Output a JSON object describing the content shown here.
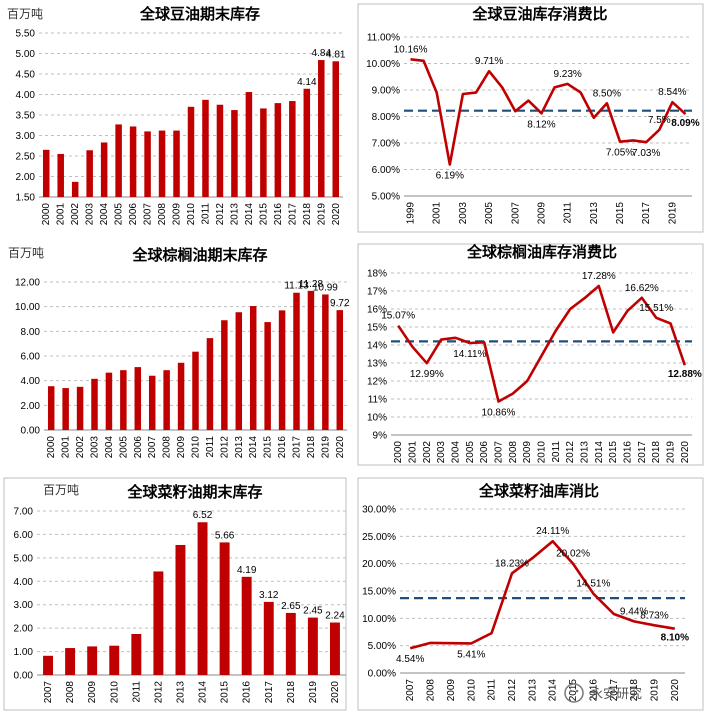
{
  "watermark": "永安研究",
  "chart_data": [
    {
      "id": "soy-stock",
      "type": "bar",
      "title": "全球豆油期末库存",
      "unit": "百万吨",
      "categories": [
        "2000",
        "2001",
        "2002",
        "2003",
        "2004",
        "2005",
        "2006",
        "2007",
        "2008",
        "2009",
        "2010",
        "2011",
        "2012",
        "2013",
        "2014",
        "2015",
        "2016",
        "2017",
        "2018",
        "2019",
        "2020"
      ],
      "values": [
        2.65,
        2.55,
        1.87,
        2.64,
        2.83,
        3.27,
        3.22,
        3.1,
        3.12,
        3.12,
        3.7,
        3.87,
        3.75,
        3.62,
        4.06,
        3.66,
        3.79,
        3.84,
        4.14,
        4.84,
        4.81
      ],
      "yticks": [
        "1.50",
        "2.00",
        "2.50",
        "3.00",
        "3.50",
        "4.00",
        "4.50",
        "5.00",
        "5.50"
      ],
      "ylim": [
        1.5,
        5.5
      ],
      "data_labels": [
        {
          "index": 18,
          "text": "4.14"
        },
        {
          "index": 19,
          "text": "4.84"
        },
        {
          "index": 20,
          "text": "4.81"
        }
      ],
      "bar_color": "#C00000"
    },
    {
      "id": "soy-ratio",
      "type": "line",
      "title": "全球豆油库存消费比",
      "x": [
        1999,
        2000,
        2001,
        2002,
        2003,
        2004,
        2005,
        2006,
        2007,
        2008,
        2009,
        2010,
        2011,
        2012,
        2013,
        2014,
        2015,
        2016,
        2017,
        2018,
        2019,
        2020
      ],
      "xticks": [
        "1999",
        "2001",
        "2003",
        "2005",
        "2007",
        "2009",
        "2011",
        "2013",
        "2015",
        "2017",
        "2019"
      ],
      "values": [
        10.16,
        10.1,
        8.9,
        6.19,
        8.85,
        8.9,
        9.71,
        9.1,
        8.2,
        8.6,
        8.12,
        9.1,
        9.23,
        8.9,
        7.95,
        8.5,
        7.05,
        7.1,
        7.03,
        7.5,
        8.54,
        8.09
      ],
      "yticks": [
        "5.00%",
        "6.00%",
        "7.00%",
        "8.00%",
        "9.00%",
        "10.00%",
        "11.00%"
      ],
      "ylim": [
        5,
        11
      ],
      "average": 8.22,
      "data_labels": [
        {
          "index": 0,
          "text": "10.16%"
        },
        {
          "index": 3,
          "text": "6.19%"
        },
        {
          "index": 6,
          "text": "9.71%"
        },
        {
          "index": 10,
          "text": "8.12%"
        },
        {
          "index": 12,
          "text": "9.23%"
        },
        {
          "index": 15,
          "text": "8.50%"
        },
        {
          "index": 16,
          "text": "7.05%"
        },
        {
          "index": 18,
          "text": "7.03%"
        },
        {
          "index": 19,
          "text": "7.5%"
        },
        {
          "index": 20,
          "text": "8.54%"
        },
        {
          "index": 21,
          "text": "8.09%",
          "highlight": true
        }
      ],
      "line_color": "#C00000",
      "avg_color": "#1F4E79",
      "highlight_color": "#FF0000"
    },
    {
      "id": "palm-stock",
      "type": "bar",
      "title": "全球棕榈油期末库存",
      "unit": "百万吨",
      "categories": [
        "2000",
        "2001",
        "2002",
        "2003",
        "2004",
        "2005",
        "2006",
        "2007",
        "2008",
        "2009",
        "2010",
        "2011",
        "2012",
        "2013",
        "2014",
        "2015",
        "2016",
        "2017",
        "2018",
        "2019",
        "2020"
      ],
      "values": [
        3.55,
        3.4,
        3.5,
        4.15,
        4.65,
        4.85,
        5.1,
        4.4,
        4.85,
        5.45,
        6.35,
        7.45,
        8.9,
        9.55,
        10.05,
        8.75,
        9.7,
        11.13,
        11.28,
        10.99,
        9.72
      ],
      "yticks": [
        "0.00",
        "2.00",
        "4.00",
        "6.00",
        "8.00",
        "10.00",
        "12.00"
      ],
      "ylim": [
        0,
        12
      ],
      "data_labels": [
        {
          "index": 17,
          "text": "11.13"
        },
        {
          "index": 18,
          "text": "11.28"
        },
        {
          "index": 19,
          "text": "10.99"
        },
        {
          "index": 20,
          "text": "9.72"
        }
      ],
      "bar_color": "#C00000"
    },
    {
      "id": "palm-ratio",
      "type": "line",
      "title": "全球棕榈油库存消费比",
      "x": [
        2000,
        2001,
        2002,
        2003,
        2004,
        2005,
        2006,
        2007,
        2008,
        2009,
        2010,
        2011,
        2012,
        2013,
        2014,
        2015,
        2016,
        2017,
        2018,
        2019,
        2020
      ],
      "xticks": [
        "2000",
        "2001",
        "2002",
        "2003",
        "2004",
        "2005",
        "2006",
        "2007",
        "2008",
        "2009",
        "2010",
        "2011",
        "2012",
        "2013",
        "2014",
        "2015",
        "2016",
        "2017",
        "2018",
        "2019",
        "2020"
      ],
      "values": [
        15.07,
        13.9,
        12.99,
        14.3,
        14.4,
        14.11,
        14.15,
        10.86,
        11.3,
        12.0,
        13.4,
        14.8,
        16.0,
        16.6,
        17.28,
        14.7,
        15.9,
        16.62,
        15.51,
        15.2,
        12.88
      ],
      "yticks": [
        "9%",
        "10%",
        "11%",
        "12%",
        "13%",
        "14%",
        "15%",
        "16%",
        "17%",
        "18%"
      ],
      "ylim": [
        9,
        18
      ],
      "average": 14.2,
      "data_labels": [
        {
          "index": 0,
          "text": "15.07%"
        },
        {
          "index": 2,
          "text": "12.99%"
        },
        {
          "index": 5,
          "text": "14.11%"
        },
        {
          "index": 7,
          "text": "10.86%"
        },
        {
          "index": 14,
          "text": "17.28%"
        },
        {
          "index": 17,
          "text": "16.62%"
        },
        {
          "index": 18,
          "text": "15.51%"
        },
        {
          "index": 20,
          "text": "12.88%",
          "highlight": true
        }
      ],
      "line_color": "#C00000",
      "avg_color": "#1F4E79",
      "highlight_color": "#FF0000"
    },
    {
      "id": "rape-stock",
      "type": "bar",
      "title": "全球菜籽油期末库存",
      "unit": "百万吨",
      "categories": [
        "2007",
        "2008",
        "2009",
        "2010",
        "2011",
        "2012",
        "2013",
        "2014",
        "2015",
        "2016",
        "2017",
        "2018",
        "2019",
        "2020"
      ],
      "values": [
        0.82,
        1.15,
        1.22,
        1.25,
        1.75,
        4.42,
        5.55,
        6.52,
        5.66,
        4.19,
        3.12,
        2.65,
        2.45,
        2.24
      ],
      "yticks": [
        "0.00",
        "1.00",
        "2.00",
        "3.00",
        "4.00",
        "5.00",
        "6.00",
        "7.00"
      ],
      "ylim": [
        0,
        7
      ],
      "data_labels": [
        {
          "index": 7,
          "text": "6.52"
        },
        {
          "index": 8,
          "text": "5.66"
        },
        {
          "index": 9,
          "text": "4.19"
        },
        {
          "index": 10,
          "text": "3.12"
        },
        {
          "index": 11,
          "text": "2.65"
        },
        {
          "index": 12,
          "text": "2.45"
        },
        {
          "index": 13,
          "text": "2.24"
        }
      ],
      "bar_color": "#C00000"
    },
    {
      "id": "rape-ratio",
      "type": "line",
      "title": "全球菜籽油库消比",
      "x": [
        2007,
        2008,
        2009,
        2010,
        2011,
        2012,
        2013,
        2014,
        2015,
        2016,
        2017,
        2018,
        2019,
        2020
      ],
      "xticks": [
        "2007",
        "2008",
        "2009",
        "2010",
        "2011",
        "2012",
        "2013",
        "2014",
        "2015",
        "2016",
        "2017",
        "2018",
        "2019",
        "2020"
      ],
      "values": [
        4.54,
        5.5,
        5.45,
        5.41,
        7.3,
        18.23,
        21.0,
        24.11,
        20.02,
        14.51,
        10.8,
        9.44,
        8.73,
        8.1
      ],
      "yticks": [
        "0.00%",
        "5.00%",
        "10.00%",
        "15.00%",
        "20.00%",
        "25.00%",
        "30.00%"
      ],
      "ylim": [
        0,
        30
      ],
      "average": 13.7,
      "data_labels": [
        {
          "index": 0,
          "text": "4.54%"
        },
        {
          "index": 3,
          "text": "5.41%"
        },
        {
          "index": 5,
          "text": "18.23%"
        },
        {
          "index": 7,
          "text": "24.11%"
        },
        {
          "index": 8,
          "text": "20.02%"
        },
        {
          "index": 9,
          "text": "14.51%"
        },
        {
          "index": 11,
          "text": "9.44%"
        },
        {
          "index": 12,
          "text": "8.73%"
        },
        {
          "index": 13,
          "text": "8.10%",
          "highlight": true
        }
      ],
      "line_color": "#C00000",
      "avg_color": "#1F4E79",
      "highlight_color": "#FF0000"
    }
  ]
}
